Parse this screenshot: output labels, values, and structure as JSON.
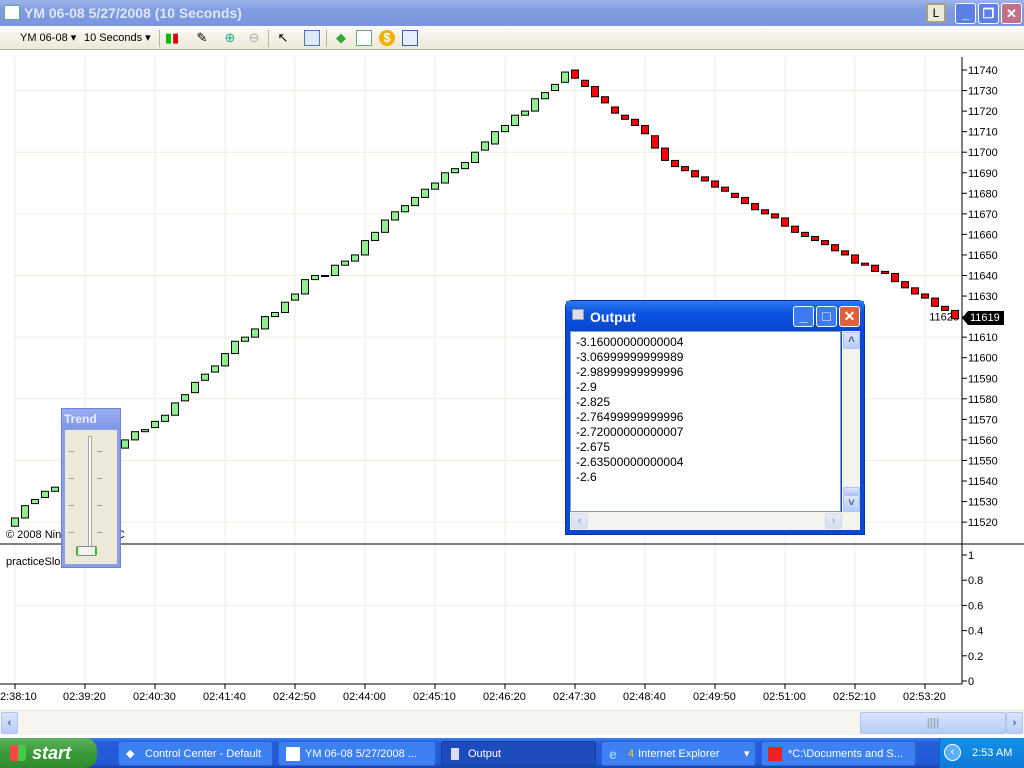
{
  "window": {
    "title": "YM 06-08  5/27/2008 (10 Seconds)",
    "l_button": "L"
  },
  "toolbar": {
    "instrument": "YM 06-08",
    "interval": "10 Seconds",
    "icons": [
      "candlestick-icon",
      "pencil-icon",
      "zoom-in-icon",
      "zoom-out-icon",
      "pointer-icon",
      "properties-icon",
      "instrument-icon",
      "chart-icon",
      "dollar-icon",
      "data-box-icon"
    ]
  },
  "chart": {
    "copyright": "© 2008 NinjaTrader LLC",
    "indicator_label": "practiceSlope(1)",
    "last_price": "11619",
    "colors": {
      "up": "#90ee90",
      "down": "#ff0000",
      "outline": "#000000",
      "grid": "#efeee2"
    }
  },
  "chart_data": [
    {
      "type": "candlestick",
      "interval": "10 Seconds",
      "first_bar_time": "02:38:10",
      "ylim": [
        11515,
        11745
      ],
      "y_ticks": [
        11520,
        11530,
        11540,
        11550,
        11560,
        11570,
        11580,
        11590,
        11600,
        11610,
        11620,
        11630,
        11640,
        11650,
        11660,
        11670,
        11680,
        11690,
        11700,
        11710,
        11720,
        11730,
        11740
      ],
      "x_ticks": [
        "2:38:10",
        "02:39:20",
        "02:40:30",
        "02:41:40",
        "02:42:50",
        "02:44:00",
        "02:45:10",
        "02:46:20",
        "02:47:30",
        "02:48:40",
        "02:49:50",
        "02:51:00",
        "02:52:10",
        "02:53:20"
      ],
      "grid": true,
      "bars_open_close": [
        [
          11518,
          11522
        ],
        [
          11522,
          11528
        ],
        [
          11529,
          11531
        ],
        [
          11532,
          11535
        ],
        [
          11535,
          11537
        ],
        [
          11537,
          11540
        ],
        [
          11540,
          11543
        ],
        [
          11543,
          11546
        ],
        [
          11546,
          11549
        ],
        [
          11549,
          11552
        ],
        [
          11552,
          11556
        ],
        [
          11556,
          11560
        ],
        [
          11560,
          11564
        ],
        [
          11564,
          11565
        ],
        [
          11566,
          11569
        ],
        [
          11569,
          11572
        ],
        [
          11572,
          11578
        ],
        [
          11579,
          11582
        ],
        [
          11583,
          11588
        ],
        [
          11589,
          11592
        ],
        [
          11593,
          11596
        ],
        [
          11596,
          11602
        ],
        [
          11602,
          11608
        ],
        [
          11608,
          11610
        ],
        [
          11610,
          11614
        ],
        [
          11614,
          11620
        ],
        [
          11620,
          11622
        ],
        [
          11622,
          11627
        ],
        [
          11628,
          11631
        ],
        [
          11631,
          11638
        ],
        [
          11638,
          11640
        ],
        [
          11640,
          11640
        ],
        [
          11640,
          11645
        ],
        [
          11645,
          11647
        ],
        [
          11647,
          11650
        ],
        [
          11650,
          11657
        ],
        [
          11657,
          11661
        ],
        [
          11661,
          11667
        ],
        [
          11667,
          11671
        ],
        [
          11671,
          11674
        ],
        [
          11674,
          11678
        ],
        [
          11678,
          11682
        ],
        [
          11682,
          11685
        ],
        [
          11685,
          11690
        ],
        [
          11690,
          11692
        ],
        [
          11692,
          11695
        ],
        [
          11695,
          11700
        ],
        [
          11701,
          11705
        ],
        [
          11704,
          11710
        ],
        [
          11710,
          11713
        ],
        [
          11713,
          11718
        ],
        [
          11718,
          11720
        ],
        [
          11720,
          11726
        ],
        [
          11726,
          11729
        ],
        [
          11730,
          11733
        ],
        [
          11734,
          11739
        ],
        [
          11740,
          11736
        ],
        [
          11735,
          11732
        ],
        [
          11732,
          11727
        ],
        [
          11727,
          11724
        ],
        [
          11722,
          11719
        ],
        [
          11718,
          11716
        ],
        [
          11716,
          11713
        ],
        [
          11713,
          11709
        ],
        [
          11708,
          11702
        ],
        [
          11702,
          11696
        ],
        [
          11696,
          11693
        ],
        [
          11693,
          11691
        ],
        [
          11691,
          11688
        ],
        [
          11688,
          11686
        ],
        [
          11686,
          11683
        ],
        [
          11683,
          11681
        ],
        [
          11680,
          11678
        ],
        [
          11678,
          11675
        ],
        [
          11675,
          11672
        ],
        [
          11672,
          11670
        ],
        [
          11670,
          11668
        ],
        [
          11668,
          11664
        ],
        [
          11664,
          11661
        ],
        [
          11661,
          11659
        ],
        [
          11659,
          11657
        ],
        [
          11657,
          11655
        ],
        [
          11655,
          11652
        ],
        [
          11652,
          11650
        ],
        [
          11650,
          11646
        ],
        [
          11646,
          11645
        ],
        [
          11645,
          11642
        ],
        [
          11642,
          11641
        ],
        [
          11641,
          11637
        ],
        [
          11637,
          11634
        ],
        [
          11634,
          11631
        ],
        [
          11631,
          11629
        ],
        [
          11629,
          11625
        ],
        [
          11625,
          11623
        ],
        [
          11623,
          11619
        ]
      ]
    },
    {
      "type": "line",
      "name": "practiceSlope(1)",
      "ylim": [
        0,
        1
      ],
      "y_ticks": [
        "1",
        "0.8",
        "0.6",
        "0.4",
        "0.2",
        "0"
      ],
      "values": []
    }
  ],
  "trend": {
    "title": "Trend",
    "slider_value": 0
  },
  "output": {
    "title": "Output",
    "lines": [
      "-3.16000000000004",
      "-3.06999999999989",
      "-2.98999999999996",
      "-2.9",
      "-2.825",
      "-2.76499999999996",
      "-2.72000000000007",
      "-2.675",
      "-2.63500000000004",
      "-2.6"
    ]
  },
  "taskbar": {
    "start": "start",
    "tasks": [
      {
        "label": "Control Center - Default",
        "icon": "diamond-icon"
      },
      {
        "label": "YM 06-08  5/27/2008 ...",
        "icon": "chart-icon"
      },
      {
        "label": "Output",
        "icon": "output-icon"
      },
      {
        "count": "4",
        "label": "Internet Explorer",
        "icon": "ie-icon"
      },
      {
        "label": "*C:\\Documents and S...",
        "icon": "paint-icon"
      }
    ],
    "clock": "2:53 AM"
  }
}
